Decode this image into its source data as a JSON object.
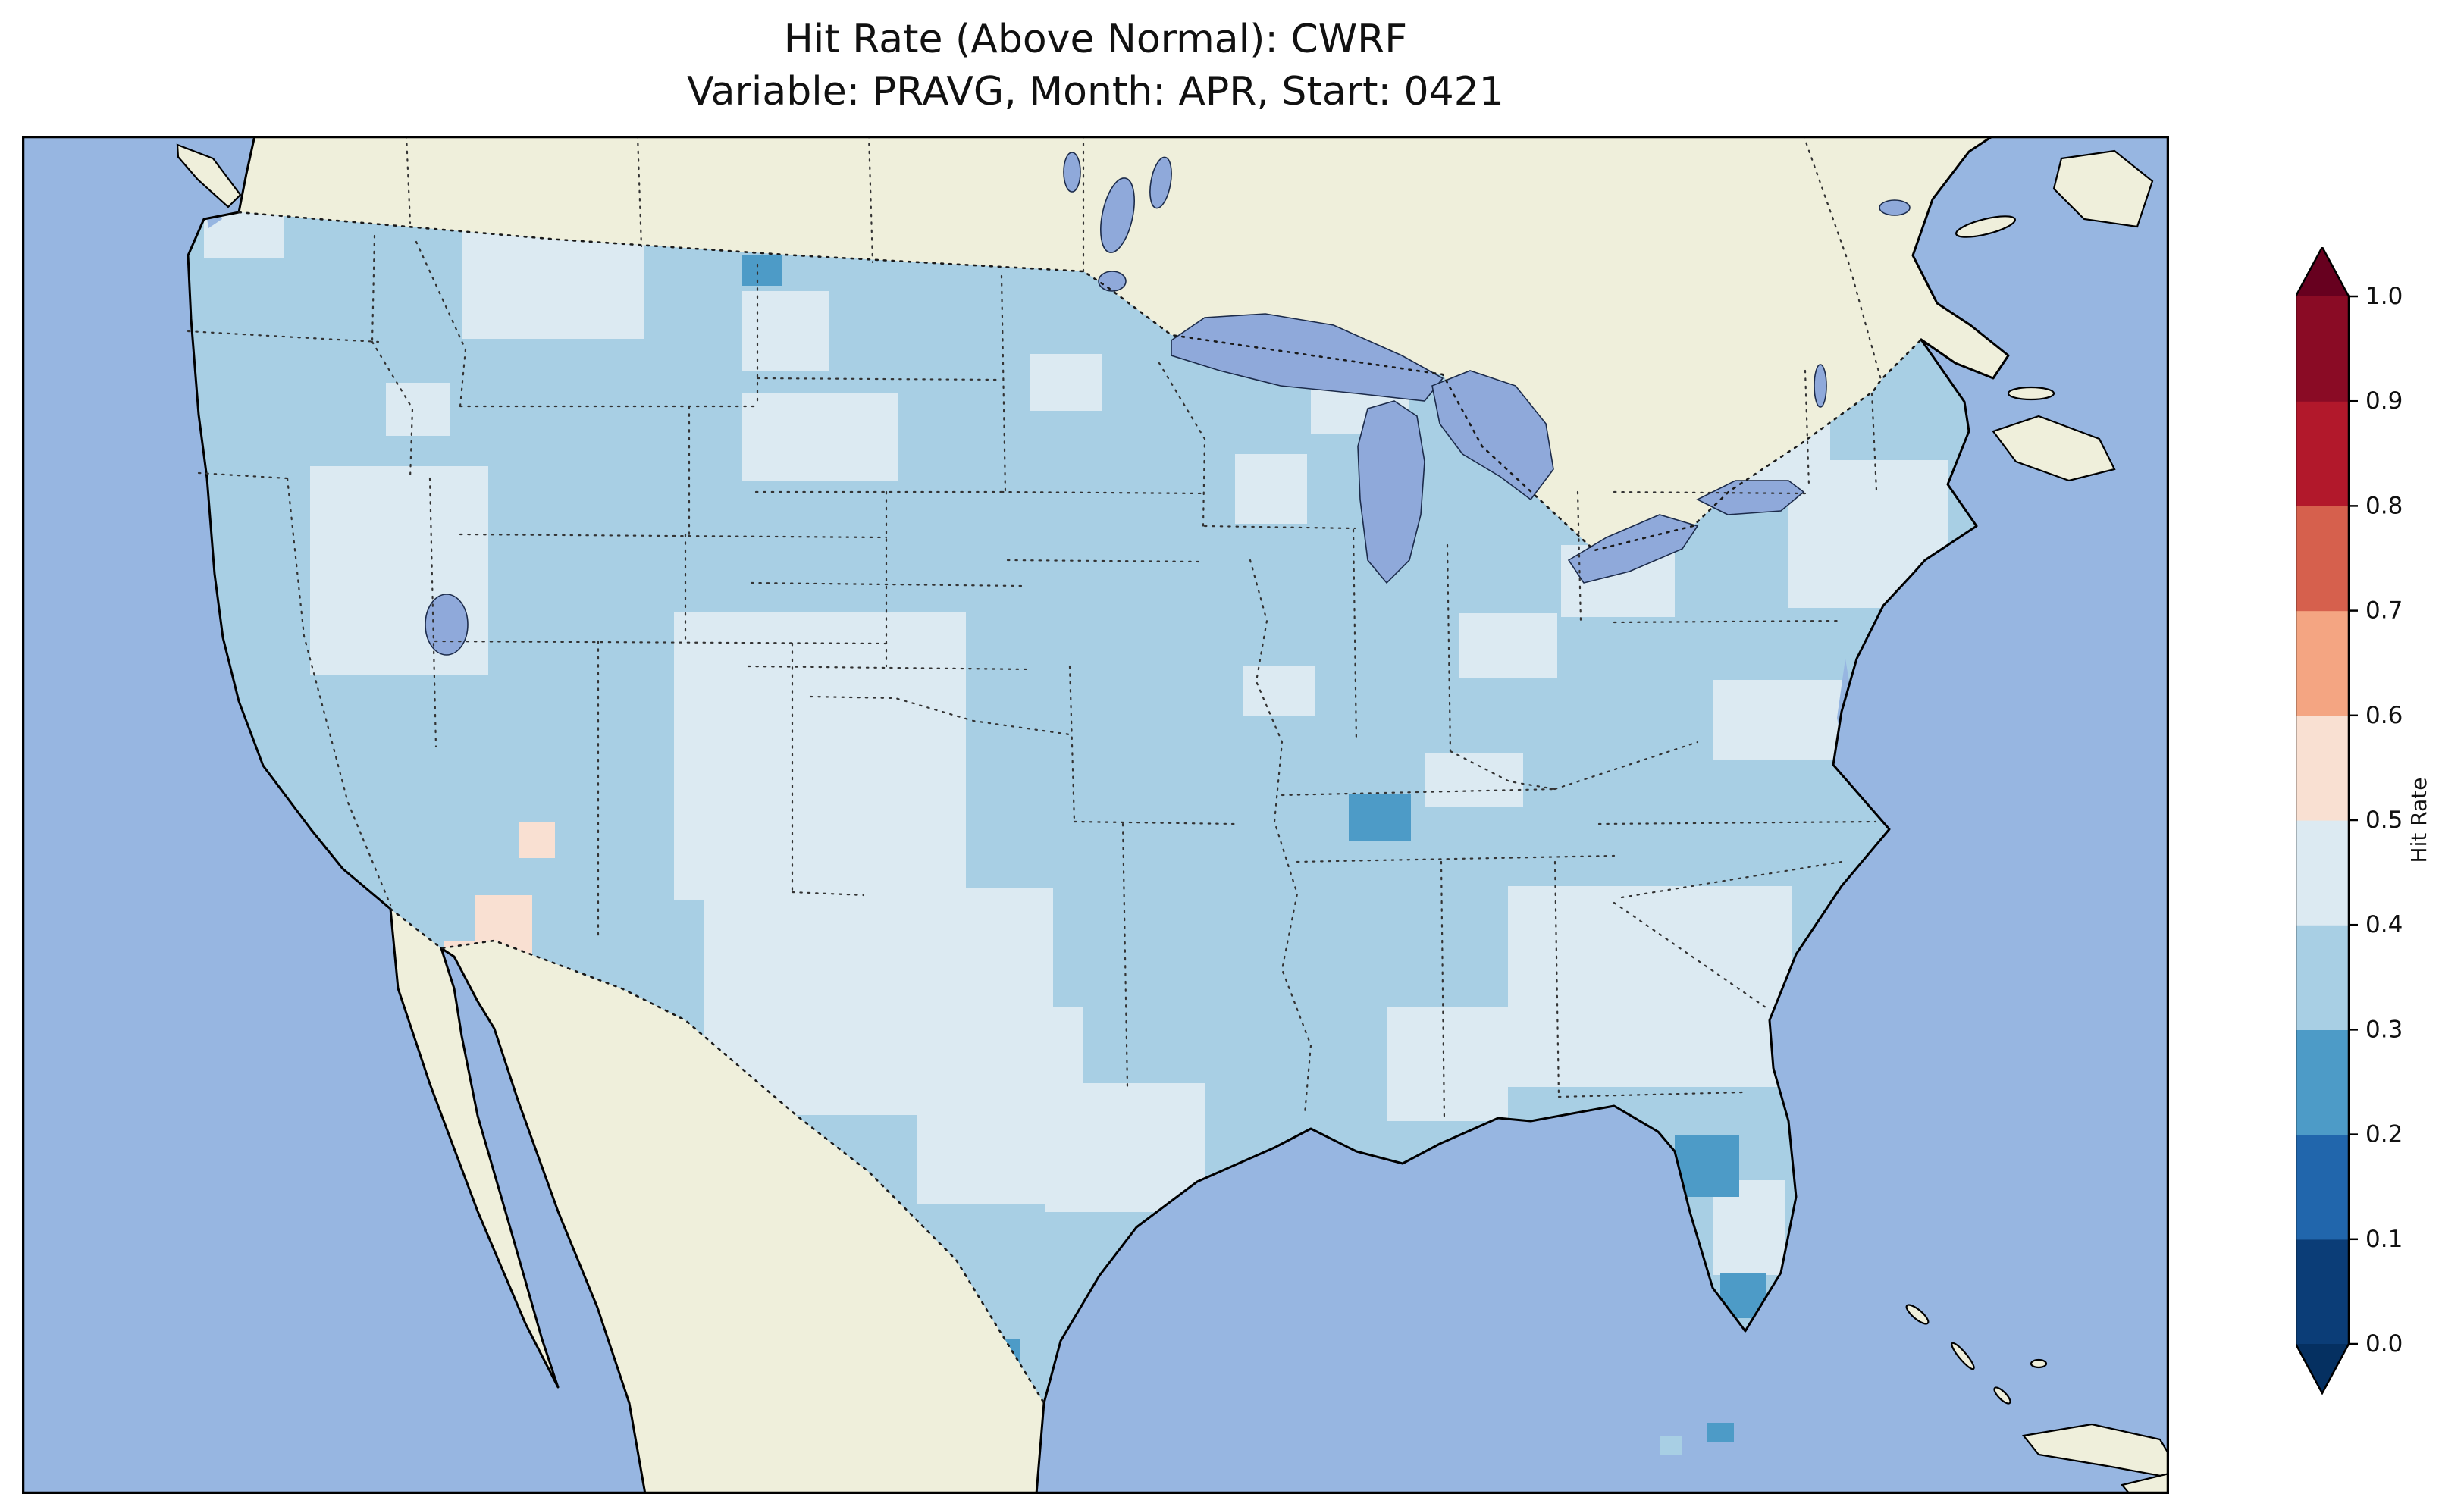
{
  "chart_data": {
    "type": "heatmap",
    "title": "Hit Rate (Above Normal): CWRF",
    "subtitle": "Variable: PRAVG, Month: APR, Start: 0421",
    "colorbar": {
      "label": "Hit Rate",
      "ticks": [
        0.0,
        0.1,
        0.2,
        0.3,
        0.4,
        0.5,
        0.6,
        0.7,
        0.8,
        0.9,
        1.0
      ],
      "segments": [
        {
          "from": 0.0,
          "to": 0.1,
          "color": "#0b3d77"
        },
        {
          "from": 0.1,
          "to": 0.2,
          "color": "#2166ac"
        },
        {
          "from": 0.2,
          "to": 0.3,
          "color": "#4d9bc7"
        },
        {
          "from": 0.3,
          "to": 0.4,
          "color": "#a8cfe4"
        },
        {
          "from": 0.4,
          "to": 0.5,
          "color": "#dceaf2"
        },
        {
          "from": 0.5,
          "to": 0.6,
          "color": "#f9e0d2"
        },
        {
          "from": 0.6,
          "to": 0.7,
          "color": "#f4a582"
        },
        {
          "from": 0.7,
          "to": 0.8,
          "color": "#d6604d"
        },
        {
          "from": 0.8,
          "to": 0.9,
          "color": "#b2182b"
        },
        {
          "from": 0.9,
          "to": 1.0,
          "color": "#8a0b25"
        }
      ],
      "under_color": "#053061",
      "over_color": "#67001f"
    },
    "map": {
      "base_value": 0.35,
      "value_range_dominant": "0.3-0.5 over most of CONUS",
      "cells": [
        [
          580,
          118,
          240,
          150,
          0.45
        ],
        [
          950,
          205,
          115,
          105,
          0.45
        ],
        [
          950,
          340,
          205,
          115,
          0.45
        ],
        [
          380,
          436,
          235,
          275,
          0.45
        ],
        [
          240,
          66,
          105,
          95,
          0.45
        ],
        [
          480,
          326,
          85,
          70,
          0.45
        ],
        [
          860,
          628,
          385,
          380,
          0.45
        ],
        [
          900,
          992,
          460,
          300,
          0.45
        ],
        [
          1180,
          1150,
          220,
          260,
          0.45
        ],
        [
          1350,
          1250,
          210,
          170,
          0.45
        ],
        [
          1330,
          288,
          95,
          75,
          0.45
        ],
        [
          1610,
          700,
          95,
          65,
          0.45
        ],
        [
          1895,
          630,
          130,
          85,
          0.45
        ],
        [
          2030,
          540,
          150,
          95,
          0.45
        ],
        [
          2250,
          375,
          135,
          80,
          0.45
        ],
        [
          2330,
          428,
          210,
          195,
          0.45
        ],
        [
          2230,
          718,
          175,
          105,
          0.45
        ],
        [
          1960,
          990,
          375,
          265,
          0.45
        ],
        [
          1800,
          1150,
          160,
          150,
          0.45
        ],
        [
          1850,
          815,
          130,
          70,
          0.45
        ],
        [
          1700,
          332,
          130,
          62,
          0.45
        ],
        [
          1600,
          420,
          95,
          92,
          0.45
        ],
        [
          2230,
          1378,
          95,
          125,
          0.45
        ],
        [
          598,
          1002,
          75,
          168,
          0.55
        ],
        [
          556,
          1062,
          58,
          58,
          0.55
        ],
        [
          655,
          905,
          48,
          48,
          0.55
        ],
        [
          1750,
          868,
          82,
          62,
          0.25
        ],
        [
          2180,
          1318,
          85,
          82,
          0.25
        ],
        [
          2240,
          1500,
          60,
          60,
          0.25
        ],
        [
          950,
          158,
          52,
          40,
          0.25
        ],
        [
          1280,
          1588,
          36,
          36,
          0.25
        ]
      ],
      "island_cells": [
        [
          2160,
          1716,
          30,
          24,
          0.35
        ],
        [
          2222,
          1698,
          36,
          26,
          0.25
        ]
      ]
    }
  },
  "colors": {
    "ocean": "#97b6e1",
    "land": "#efefdb",
    "lake": "#8fa9da",
    "background": "#ffffff"
  }
}
